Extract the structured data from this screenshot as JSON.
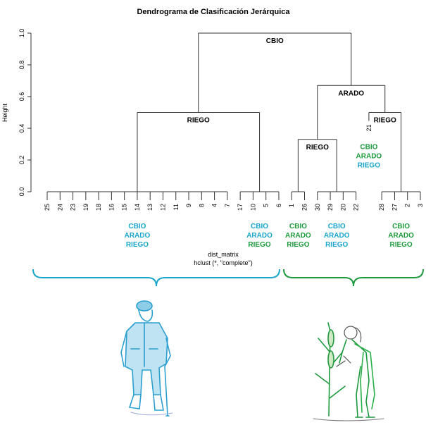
{
  "chart_data": {
    "type": "dendrogram",
    "title": "Dendrograma de Clasificación Jerárquica",
    "ylabel": "Height",
    "xlabel": [
      "dist_matrix",
      "hclust (*, \"complete\")"
    ],
    "ylim": [
      0,
      1
    ],
    "yticks": [
      {
        "value": 0,
        "label": "0.0"
      },
      {
        "value": 0.2,
        "label": "0.2"
      },
      {
        "value": 0.4,
        "label": "0.4"
      },
      {
        "value": 0.6,
        "label": "0.6"
      },
      {
        "value": 0.8,
        "label": "0.8"
      },
      {
        "value": 1,
        "label": "1.0"
      }
    ],
    "tree": {
      "label": "CBIO",
      "height": 1.0,
      "children": [
        {
          "label": "RIEGO",
          "height": 0.5,
          "children": [
            {
              "height": 0,
              "leaves": [
                "25",
                "24",
                "23",
                "19",
                "18",
                "16",
                "15",
                "14",
                "13",
                "12",
                "11",
                "9",
                "8",
                "4",
                "7"
              ],
              "tags": [
                {
                  "text": "CBIO",
                  "color": "#1aa6cc"
                },
                {
                  "text": "ARADO",
                  "color": "#1aa6cc"
                },
                {
                  "text": "RIEGO",
                  "color": "#1aa6cc"
                }
              ]
            },
            {
              "height": 0,
              "leaves": [
                "17",
                "10",
                "5",
                "6"
              ],
              "tags": [
                {
                  "text": "CBIO",
                  "color": "#1aa6cc"
                },
                {
                  "text": "ARADO",
                  "color": "#1aa6cc"
                },
                {
                  "text": "RIEGO",
                  "color": "#1e9a3e"
                }
              ]
            }
          ]
        },
        {
          "label": "ARADO",
          "height": 0.67,
          "children": [
            {
              "label": "RIEGO",
              "height": 0.33,
              "children": [
                {
                  "height": 0,
                  "leaves": [
                    "1",
                    "26"
                  ],
                  "tags": [
                    {
                      "text": "CBIO",
                      "color": "#1e9a3e"
                    },
                    {
                      "text": "ARADO",
                      "color": "#1e9a3e"
                    },
                    {
                      "text": "RIEGO",
                      "color": "#1e9a3e"
                    }
                  ]
                },
                {
                  "height": 0,
                  "leaves": [
                    "30",
                    "29",
                    "20",
                    "22"
                  ],
                  "tags": [
                    {
                      "text": "CBIO",
                      "color": "#1aa6cc"
                    },
                    {
                      "text": "ARADO",
                      "color": "#1aa6cc"
                    },
                    {
                      "text": "RIEGO",
                      "color": "#1aa6cc"
                    }
                  ]
                }
              ]
            },
            {
              "label": "RIEGO",
              "height": 0.5,
              "children": [
                {
                  "leaves": [
                    "21"
                  ],
                  "tags": [
                    {
                      "text": "CBIO",
                      "color": "#1e9a3e"
                    },
                    {
                      "text": "ARADO",
                      "color": "#1e9a3e"
                    },
                    {
                      "text": "RIEGO",
                      "color": "#1aa6cc"
                    }
                  ]
                },
                {
                  "height": 0,
                  "leaves": [
                    "28",
                    "27",
                    "2",
                    "3"
                  ],
                  "tags": [
                    {
                      "text": "CBIO",
                      "color": "#1e9a3e"
                    },
                    {
                      "text": "ARADO",
                      "color": "#1e9a3e"
                    },
                    {
                      "text": "RIEGO",
                      "color": "#1e9a3e"
                    }
                  ]
                }
              ]
            }
          ]
        }
      ]
    }
  }
}
